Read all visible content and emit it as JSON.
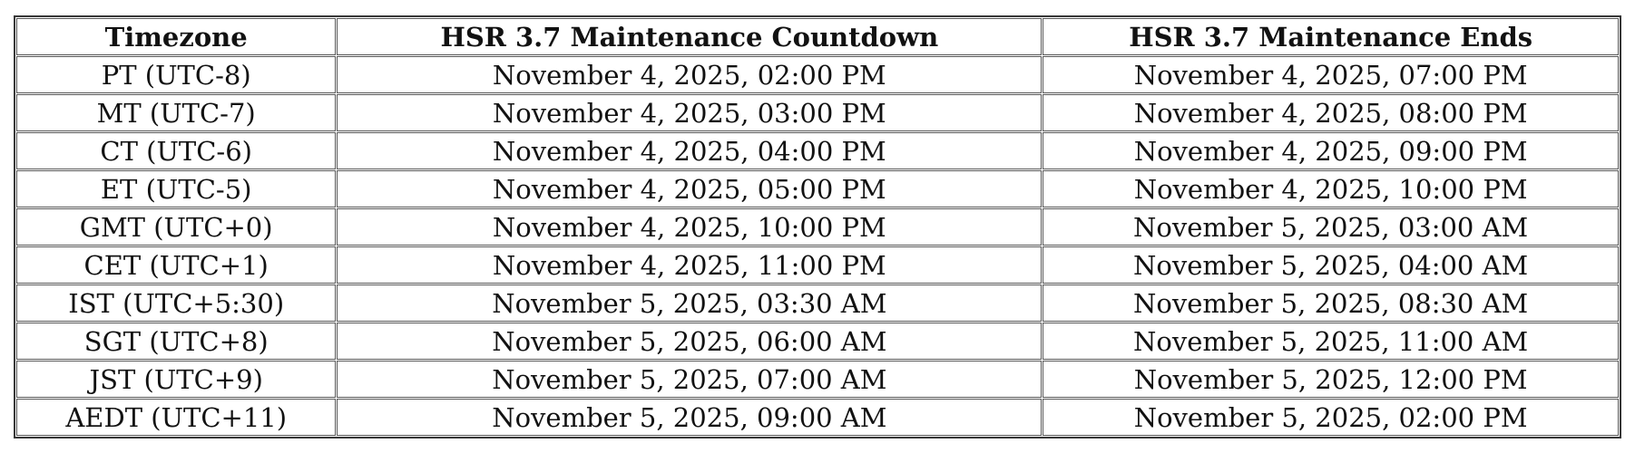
{
  "colors": {
    "background": "#ffffff",
    "text": "#121212",
    "border_outer": "#383838",
    "border_inner": "#575757"
  },
  "chart_data": {
    "type": "table",
    "columns": [
      "Timezone",
      "HSR 3.7 Maintenance Countdown",
      "HSR 3.7 Maintenance Ends"
    ],
    "rows": [
      [
        "PT (UTC-8)",
        "November 4, 2025, 02:00 PM",
        "November 4, 2025, 07:00 PM"
      ],
      [
        "MT (UTC-7)",
        "November 4, 2025, 03:00 PM",
        "November 4, 2025, 08:00 PM"
      ],
      [
        "CT (UTC-6)",
        "November 4, 2025, 04:00 PM",
        "November 4, 2025, 09:00 PM"
      ],
      [
        "ET (UTC-5)",
        "November 4, 2025, 05:00 PM",
        "November 4, 2025, 10:00 PM"
      ],
      [
        "GMT (UTC+0)",
        "November 4, 2025, 10:00 PM",
        "November 5, 2025, 03:00 AM"
      ],
      [
        "CET (UTC+1)",
        "November 4, 2025, 11:00 PM",
        "November 5, 2025, 04:00 AM"
      ],
      [
        "IST (UTC+5:30)",
        "November 5, 2025, 03:30 AM",
        "November 5, 2025, 08:30 AM"
      ],
      [
        "SGT (UTC+8)",
        "November 5, 2025, 06:00 AM",
        "November 5, 2025, 11:00 AM"
      ],
      [
        "JST (UTC+9)",
        "November 5, 2025, 07:00 AM",
        "November 5, 2025, 12:00 PM"
      ],
      [
        "AEDT (UTC+11)",
        "November 5, 2025, 09:00 AM",
        "November 5, 2025, 02:00 PM"
      ]
    ]
  }
}
